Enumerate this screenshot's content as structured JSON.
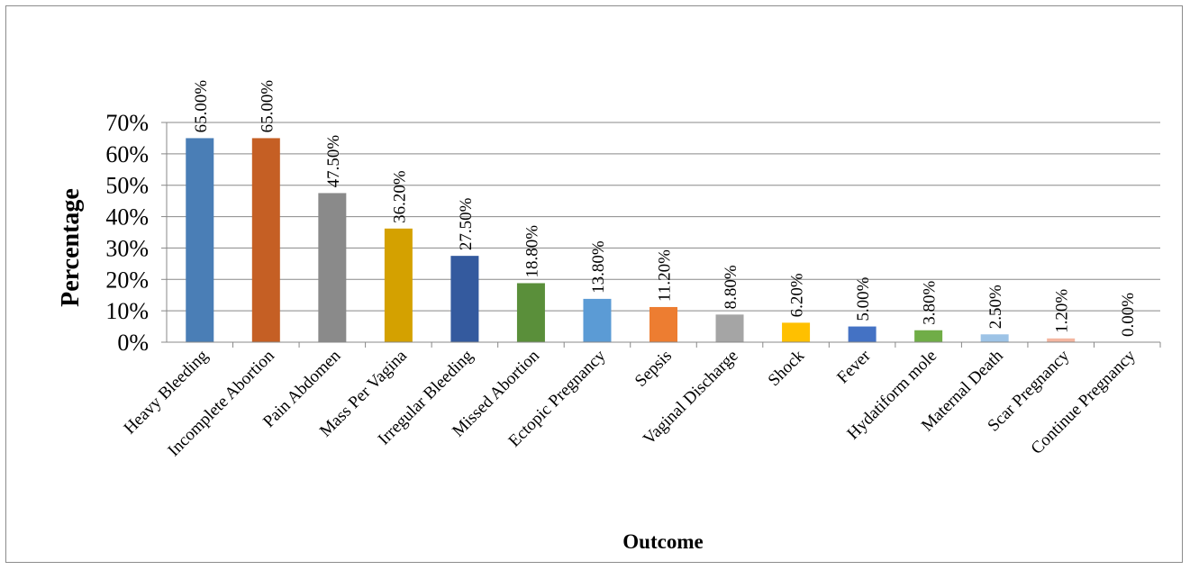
{
  "chart_data": {
    "type": "bar",
    "title": "",
    "xlabel": "Outcome",
    "ylabel": "Percentage",
    "ylim": [
      0,
      70
    ],
    "yticks": [
      0,
      10,
      20,
      30,
      40,
      50,
      60,
      70
    ],
    "ytick_labels": [
      "0%",
      "10%",
      "20%",
      "30%",
      "40%",
      "50%",
      "60%",
      "70%"
    ],
    "grid": true,
    "legend": "none",
    "categories": [
      "Heavy Bleeding",
      "Incomplete Abortion",
      "Pain Abdomen",
      "Mass Per Vagina",
      "Irregular Bleeding",
      "Missed Abortion",
      "Ectopic Pregnancy",
      "Sepsis",
      "Vaginal Discharge",
      "Shock",
      "Fever",
      "Hydatiform mole",
      "Maternal Death",
      "Scar Pregnancy",
      "Continue Pregnancy"
    ],
    "values": [
      65.0,
      65.0,
      47.5,
      36.2,
      27.5,
      18.8,
      13.8,
      11.2,
      8.8,
      6.2,
      5.0,
      3.8,
      2.5,
      1.2,
      0.0
    ],
    "data_labels": [
      "65.00%",
      "65.00%",
      "47.50%",
      "36.20%",
      "27.50%",
      "18.80%",
      "13.80%",
      "11.20%",
      "8.80%",
      "6.20%",
      "5.00%",
      "3.80%",
      "2.50%",
      "1.20%",
      "0.00%"
    ],
    "colors": [
      "#4a7eb6",
      "#c55f24",
      "#8a8a8a",
      "#d4a100",
      "#345a9e",
      "#5a8f3a",
      "#5b9bd5",
      "#ed7d31",
      "#a5a5a5",
      "#ffc000",
      "#4472c4",
      "#70ad47",
      "#9dc3e6",
      "#f4b6a0",
      "#c9c9c9"
    ],
    "gridline_color": "#888888"
  }
}
